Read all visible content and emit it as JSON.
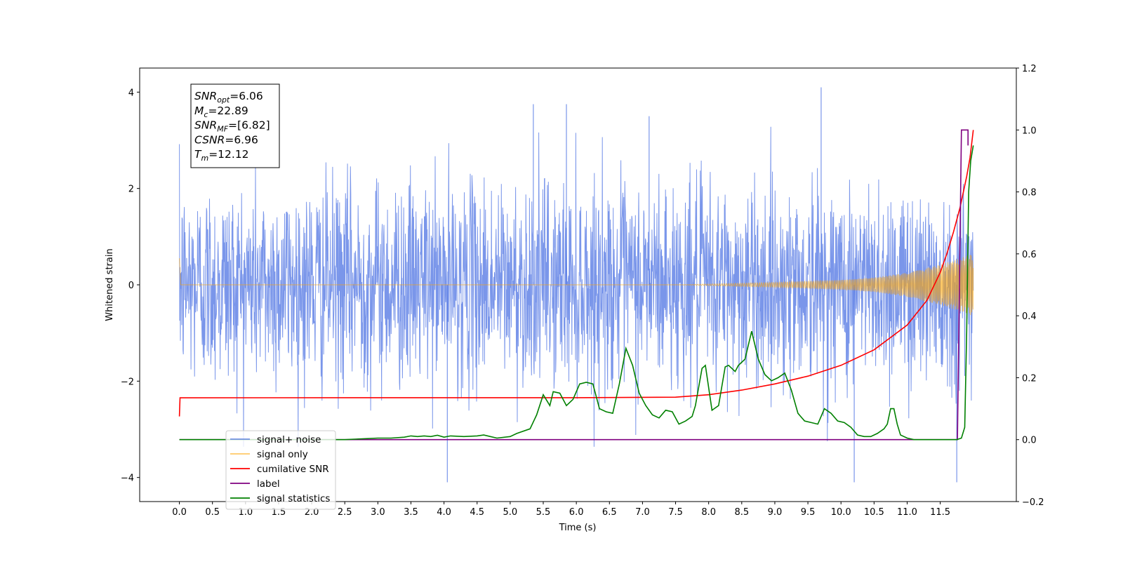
{
  "chart_data": {
    "type": "line",
    "xlabel": "Time (s)",
    "ylabel": "Whitened strain",
    "xlim": [
      -0.6,
      12.65
    ],
    "ylim": [
      -4.5,
      4.5
    ],
    "y2lim": [
      -0.2,
      1.2
    ],
    "x_ticks": [
      0.0,
      0.5,
      1.0,
      1.5,
      2.0,
      2.5,
      3.0,
      3.5,
      4.0,
      4.5,
      5.0,
      5.5,
      6.0,
      6.5,
      7.0,
      7.5,
      8.0,
      8.5,
      9.0,
      9.5,
      10.0,
      10.5,
      11.0,
      11.5
    ],
    "x_tick_labels": [
      "0.0",
      "0.5",
      "1.0",
      "1.5",
      "2.0",
      "2.5",
      "3.0",
      "3.5",
      "4.0",
      "4.5",
      "5.0",
      "5.5",
      "6.0",
      "6.5",
      "7.0",
      "7.5",
      "8.0",
      "8.5",
      "9.0",
      "9.5",
      "10.0",
      "10.5",
      "11.0",
      "11.5"
    ],
    "y_ticks": [
      -4,
      -2,
      0,
      2,
      4
    ],
    "y_tick_labels": [
      "−4",
      "−2",
      "0",
      "2",
      "4"
    ],
    "y2_ticks": [
      -0.2,
      0.0,
      0.2,
      0.4,
      0.6,
      0.8,
      1.0,
      1.2
    ],
    "y2_tick_labels": [
      "−0.2",
      "0.0",
      "0.2",
      "0.4",
      "0.6",
      "0.8",
      "1.0",
      "1.2"
    ],
    "grid": false,
    "legend_position": "lower-left",
    "annotation_box": [
      {
        "base": "SNR",
        "sub": "opt",
        "value": "=6.06"
      },
      {
        "base": "M",
        "sub": "c",
        "value": "=22.89"
      },
      {
        "base": "SNR",
        "sub": "MF",
        "value": "=[6.82]"
      },
      {
        "base": "CSNR",
        "sub": "",
        "value": "=6.96"
      },
      {
        "base": "T",
        "sub": "m",
        "value": "=12.12"
      }
    ],
    "series": [
      {
        "name": "signal+ noise",
        "axis": "left",
        "color": "#4169e1",
        "opacity": 0.7,
        "t_start": 0.0,
        "t_end": 12.0,
        "typical_range": [
          -1.8,
          2.0
        ],
        "envelope_min": -4.1,
        "envelope_max": 4.1,
        "notable_peaks": [
          {
            "x": 9.7,
            "y": 4.1
          },
          {
            "x": 5.35,
            "y": 3.75
          },
          {
            "x": 5.85,
            "y": 3.75
          },
          {
            "x": 7.1,
            "y": 3.5
          },
          {
            "x": 4.05,
            "y": -4.1
          },
          {
            "x": 10.2,
            "y": -4.1
          },
          {
            "x": 11.75,
            "y": -4.1
          }
        ]
      },
      {
        "name": "signal only",
        "axis": "left",
        "color": "#ffa500",
        "opacity": 0.6,
        "t_start": 0.0,
        "t_end": 12.0,
        "points": [
          [
            0.0,
            0.55
          ],
          [
            0.02,
            0.0
          ],
          [
            7.5,
            0.0
          ],
          [
            9.0,
            0.05
          ],
          [
            10.0,
            0.1
          ],
          [
            10.5,
            0.15
          ],
          [
            11.0,
            0.25
          ],
          [
            11.5,
            0.42
          ],
          [
            11.8,
            0.55
          ],
          [
            12.0,
            0.65
          ]
        ]
      },
      {
        "name": "cumilative SNR",
        "axis": "right",
        "color": "#ff0000",
        "points": [
          [
            0.0,
            0.075
          ],
          [
            0.01,
            0.135
          ],
          [
            3.0,
            0.1355
          ],
          [
            6.0,
            0.1355
          ],
          [
            7.5,
            0.137
          ],
          [
            8.0,
            0.145
          ],
          [
            8.5,
            0.16
          ],
          [
            9.0,
            0.18
          ],
          [
            9.5,
            0.205
          ],
          [
            10.0,
            0.24
          ],
          [
            10.5,
            0.29
          ],
          [
            11.0,
            0.37
          ],
          [
            11.3,
            0.45
          ],
          [
            11.5,
            0.54
          ],
          [
            11.6,
            0.6
          ],
          [
            11.7,
            0.67
          ],
          [
            11.8,
            0.75
          ],
          [
            11.9,
            0.85
          ],
          [
            11.95,
            0.91
          ],
          [
            12.0,
            1.0
          ]
        ]
      },
      {
        "name": "label",
        "axis": "right",
        "color": "#800080",
        "points": [
          [
            0.0,
            0.0
          ],
          [
            11.76,
            0.0
          ],
          [
            11.82,
            1.0
          ],
          [
            11.92,
            1.0
          ],
          [
            11.92,
            0.95
          ]
        ]
      },
      {
        "name": "signal statistics",
        "axis": "right",
        "color": "#008000",
        "points": [
          [
            0.0,
            0.0
          ],
          [
            1.0,
            0.0
          ],
          [
            2.0,
            0.0
          ],
          [
            2.5,
            0.0
          ],
          [
            3.0,
            0.005
          ],
          [
            3.2,
            0.005
          ],
          [
            3.4,
            0.008
          ],
          [
            3.5,
            0.012
          ],
          [
            3.6,
            0.01
          ],
          [
            3.7,
            0.012
          ],
          [
            3.8,
            0.01
          ],
          [
            3.9,
            0.014
          ],
          [
            4.0,
            0.008
          ],
          [
            4.1,
            0.012
          ],
          [
            4.3,
            0.01
          ],
          [
            4.5,
            0.012
          ],
          [
            4.6,
            0.015
          ],
          [
            4.7,
            0.01
          ],
          [
            4.8,
            0.005
          ],
          [
            5.0,
            0.01
          ],
          [
            5.1,
            0.02
          ],
          [
            5.3,
            0.035
          ],
          [
            5.4,
            0.08
          ],
          [
            5.5,
            0.145
          ],
          [
            5.6,
            0.11
          ],
          [
            5.65,
            0.155
          ],
          [
            5.75,
            0.15
          ],
          [
            5.85,
            0.11
          ],
          [
            5.95,
            0.13
          ],
          [
            6.05,
            0.18
          ],
          [
            6.15,
            0.185
          ],
          [
            6.25,
            0.18
          ],
          [
            6.35,
            0.1
          ],
          [
            6.45,
            0.09
          ],
          [
            6.55,
            0.085
          ],
          [
            6.65,
            0.18
          ],
          [
            6.75,
            0.295
          ],
          [
            6.85,
            0.24
          ],
          [
            6.95,
            0.15
          ],
          [
            7.05,
            0.11
          ],
          [
            7.15,
            0.08
          ],
          [
            7.25,
            0.07
          ],
          [
            7.35,
            0.095
          ],
          [
            7.45,
            0.09
          ],
          [
            7.55,
            0.05
          ],
          [
            7.65,
            0.06
          ],
          [
            7.75,
            0.075
          ],
          [
            7.8,
            0.11
          ],
          [
            7.9,
            0.23
          ],
          [
            7.95,
            0.24
          ],
          [
            8.05,
            0.095
          ],
          [
            8.15,
            0.11
          ],
          [
            8.25,
            0.235
          ],
          [
            8.3,
            0.24
          ],
          [
            8.4,
            0.22
          ],
          [
            8.45,
            0.24
          ],
          [
            8.55,
            0.26
          ],
          [
            8.65,
            0.35
          ],
          [
            8.75,
            0.26
          ],
          [
            8.85,
            0.21
          ],
          [
            8.95,
            0.19
          ],
          [
            9.05,
            0.2
          ],
          [
            9.15,
            0.215
          ],
          [
            9.25,
            0.16
          ],
          [
            9.35,
            0.085
          ],
          [
            9.45,
            0.06
          ],
          [
            9.55,
            0.055
          ],
          [
            9.65,
            0.05
          ],
          [
            9.75,
            0.1
          ],
          [
            9.85,
            0.085
          ],
          [
            9.95,
            0.06
          ],
          [
            10.05,
            0.055
          ],
          [
            10.15,
            0.04
          ],
          [
            10.25,
            0.015
          ],
          [
            10.35,
            0.01
          ],
          [
            10.45,
            0.01
          ],
          [
            10.55,
            0.02
          ],
          [
            10.65,
            0.035
          ],
          [
            10.7,
            0.05
          ],
          [
            10.75,
            0.1
          ],
          [
            10.8,
            0.1
          ],
          [
            10.85,
            0.05
          ],
          [
            10.9,
            0.015
          ],
          [
            11.0,
            0.005
          ],
          [
            11.1,
            0.0
          ],
          [
            11.5,
            0.0
          ],
          [
            11.75,
            0.0
          ],
          [
            11.82,
            0.005
          ],
          [
            11.87,
            0.04
          ],
          [
            11.9,
            0.35
          ],
          [
            11.93,
            0.8
          ],
          [
            11.96,
            0.9
          ],
          [
            12.0,
            0.95
          ]
        ]
      }
    ]
  }
}
